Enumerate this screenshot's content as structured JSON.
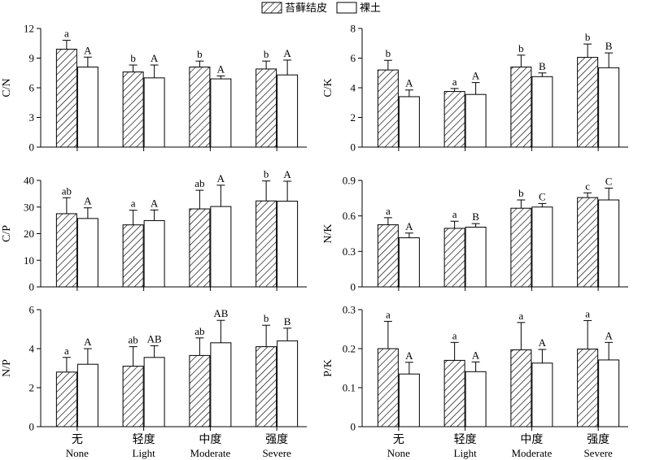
{
  "legend": {
    "crust_label": "苔藓结皮",
    "soil_label": "裸土"
  },
  "categories_cn": [
    "无",
    "轻度",
    "中度",
    "强度"
  ],
  "categories_en": [
    "None",
    "Light",
    "Moderate",
    "Severe"
  ],
  "chart_data": [
    {
      "type": "bar",
      "ylabel": "C/N",
      "ylim": [
        0,
        12
      ],
      "yticks": [
        "0",
        "3",
        "6",
        "9",
        "12"
      ],
      "series": [
        {
          "name": "苔藓结皮",
          "values": [
            9.9,
            7.6,
            8.1,
            7.9
          ],
          "errors": [
            0.9,
            0.7,
            0.6,
            0.8
          ],
          "letters": [
            "a",
            "b",
            "b",
            "b"
          ]
        },
        {
          "name": "裸土",
          "values": [
            8.1,
            7.0,
            6.9,
            7.3
          ],
          "errors": [
            1.0,
            1.3,
            0.3,
            1.5
          ],
          "letters": [
            "A",
            "A",
            "A",
            "A"
          ]
        }
      ]
    },
    {
      "type": "bar",
      "ylabel": "C/K",
      "ylim": [
        0,
        8
      ],
      "yticks": [
        "0",
        "2",
        "4",
        "6",
        "8"
      ],
      "series": [
        {
          "name": "苔藓结皮",
          "values": [
            5.2,
            3.75,
            5.4,
            6.05
          ],
          "errors": [
            0.65,
            0.2,
            0.8,
            0.9
          ],
          "letters": [
            "b",
            "a",
            "b",
            "b"
          ]
        },
        {
          "name": "裸土",
          "values": [
            3.4,
            3.55,
            4.75,
            5.35
          ],
          "errors": [
            0.45,
            0.8,
            0.25,
            1.0
          ],
          "letters": [
            "A",
            "A",
            "B",
            "B"
          ]
        }
      ]
    },
    {
      "type": "bar",
      "ylabel": "C/P",
      "ylim": [
        0,
        40
      ],
      "yticks": [
        "0",
        "10",
        "20",
        "30",
        "40"
      ],
      "series": [
        {
          "name": "苔藓结皮",
          "values": [
            27.5,
            23.3,
            29.3,
            32.3
          ],
          "errors": [
            6.0,
            5.5,
            7.0,
            7.5
          ],
          "letters": [
            "ab",
            "a",
            "ab",
            "b"
          ]
        },
        {
          "name": "裸土",
          "values": [
            25.7,
            24.9,
            30.2,
            32.2
          ],
          "errors": [
            4.0,
            4.0,
            8.0,
            7.5
          ],
          "letters": [
            "A",
            "A",
            "A",
            "A"
          ]
        }
      ]
    },
    {
      "type": "bar",
      "ylabel": "N/K",
      "ylim": [
        0,
        0.9
      ],
      "yticks": [
        "0",
        "0.3",
        "0.6",
        "0.9"
      ],
      "series": [
        {
          "name": "苔藓结皮",
          "values": [
            0.525,
            0.495,
            0.665,
            0.755
          ],
          "errors": [
            0.06,
            0.06,
            0.07,
            0.04
          ],
          "letters": [
            "a",
            "a",
            "b",
            "c"
          ]
        },
        {
          "name": "裸土",
          "values": [
            0.415,
            0.505,
            0.675,
            0.735
          ],
          "errors": [
            0.04,
            0.03,
            0.03,
            0.1
          ],
          "letters": [
            "A",
            "B",
            "C",
            "C"
          ]
        }
      ]
    },
    {
      "type": "bar",
      "ylabel": "N/P",
      "ylim": [
        0,
        6
      ],
      "yticks": [
        "0",
        "2",
        "4",
        "6"
      ],
      "series": [
        {
          "name": "苔藓结皮",
          "values": [
            2.8,
            3.1,
            3.65,
            4.1
          ],
          "errors": [
            0.75,
            1.0,
            0.9,
            1.1
          ],
          "letters": [
            "a",
            "ab",
            "ab",
            "b"
          ]
        },
        {
          "name": "裸土",
          "values": [
            3.2,
            3.55,
            4.3,
            4.4
          ],
          "errors": [
            0.8,
            0.6,
            1.15,
            0.65
          ],
          "letters": [
            "A",
            "AB",
            "AB",
            "B"
          ]
        }
      ]
    },
    {
      "type": "bar",
      "ylabel": "P/K",
      "ylim": [
        0,
        0.3
      ],
      "yticks": [
        "0",
        "0.1",
        "0.2",
        "0.3"
      ],
      "series": [
        {
          "name": "苔藓结皮",
          "values": [
            0.2,
            0.17,
            0.197,
            0.199
          ],
          "errors": [
            0.07,
            0.046,
            0.07,
            0.073
          ],
          "letters": [
            "a",
            "a",
            "a",
            "a"
          ]
        },
        {
          "name": "裸土",
          "values": [
            0.135,
            0.141,
            0.163,
            0.171
          ],
          "errors": [
            0.03,
            0.025,
            0.035,
            0.045
          ],
          "letters": [
            "A",
            "A",
            "A",
            "A"
          ]
        }
      ]
    }
  ]
}
